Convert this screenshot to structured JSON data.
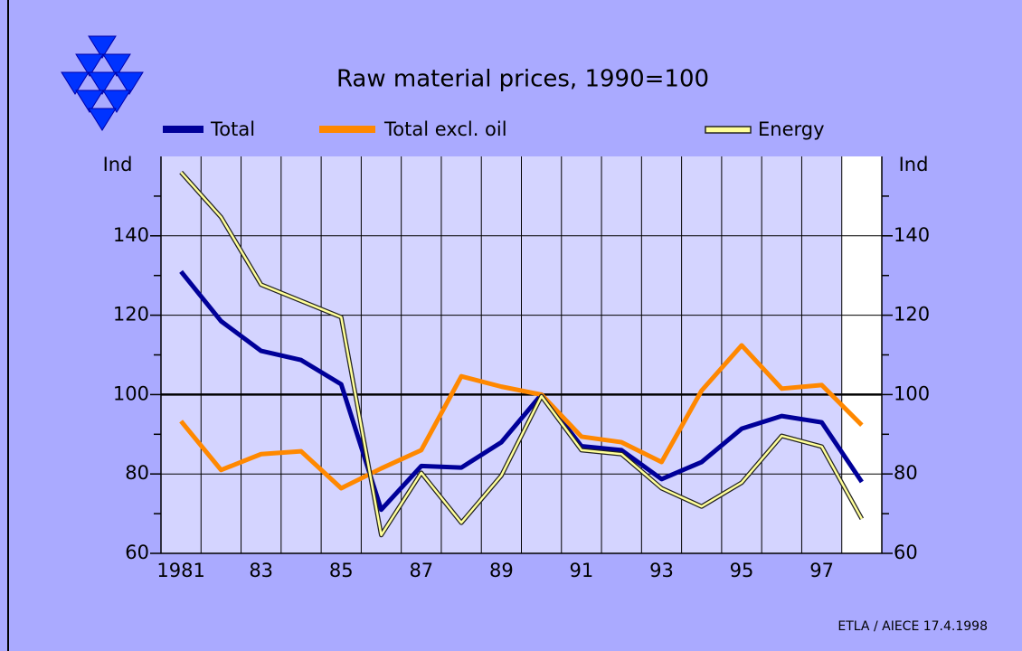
{
  "chart_data": {
    "type": "line",
    "title": "Raw material prices, 1990=100",
    "y_axis_label": "Ind",
    "y2_axis_label": "Ind",
    "source": "ETLA / AIECE 17.4.1998",
    "x": [
      1981,
      1982,
      1983,
      1984,
      1985,
      1986,
      1987,
      1988,
      1989,
      1990,
      1991,
      1992,
      1993,
      1994,
      1995,
      1996,
      1997,
      1998
    ],
    "series": [
      {
        "name": "Total",
        "color": "#000099",
        "values": [
          131,
          118.5,
          111,
          108.7,
          102.6,
          71,
          82,
          81.6,
          88,
          100,
          87,
          86,
          78.7,
          83,
          91.4,
          94.6,
          93,
          78
        ]
      },
      {
        "name": "Total excl. oil",
        "color": "#ff8800",
        "values": [
          93.3,
          81,
          85,
          85.7,
          76.4,
          81.4,
          86,
          104.6,
          102,
          100,
          89.4,
          88,
          83,
          101,
          112.4,
          101.5,
          102.4,
          92.3
        ]
      },
      {
        "name": "Energy",
        "color": "#ffff99",
        "values": [
          156,
          144.7,
          127.7,
          123.6,
          119.5,
          64.6,
          80.3,
          67.7,
          79.6,
          99.6,
          86,
          85,
          76.4,
          71.8,
          77.8,
          89.6,
          86.9,
          68.7
        ]
      }
    ],
    "xlim": [
      1980.5,
      1998.5
    ],
    "xticks": [
      {
        "value": 1981,
        "label": "1981"
      },
      {
        "value": 1983,
        "label": "83"
      },
      {
        "value": 1985,
        "label": "85"
      },
      {
        "value": 1987,
        "label": "87"
      },
      {
        "value": 1989,
        "label": "89"
      },
      {
        "value": 1991,
        "label": "91"
      },
      {
        "value": 1993,
        "label": "93"
      },
      {
        "value": 1995,
        "label": "95"
      },
      {
        "value": 1997,
        "label": "97"
      }
    ],
    "ylim": [
      60,
      160
    ],
    "yticks": [
      60,
      80,
      100,
      120,
      140
    ],
    "yminor_ticks": [
      70,
      90,
      110,
      130,
      150
    ],
    "y2lim": [
      60,
      160
    ],
    "y2ticks": [
      60,
      80,
      100,
      120,
      140
    ],
    "grid": true
  }
}
